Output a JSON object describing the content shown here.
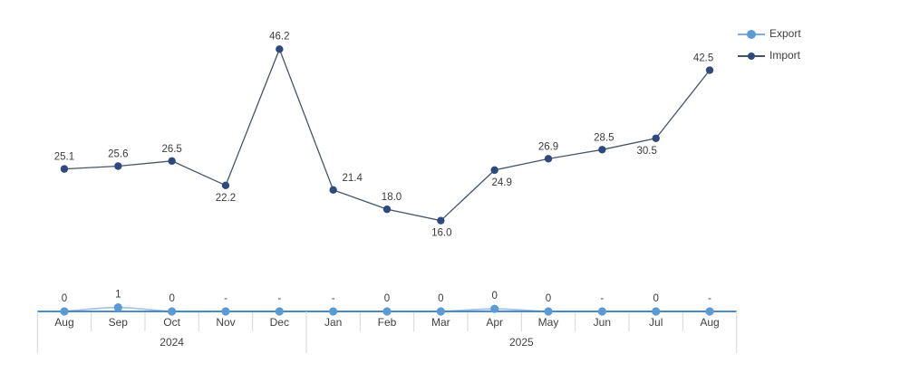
{
  "chart": {
    "background": "#ffffff",
    "legend": {
      "items": [
        {
          "label": "Export",
          "marker_color": "#5B9BD5",
          "line_color": "#7FACDC",
          "marker_size": 10
        },
        {
          "label": "Import",
          "marker_color": "#2E4A7C",
          "line_color": "#44546A",
          "marker_size": 8
        }
      ]
    }
  },
  "chart_data": {
    "type": "line",
    "categories": [
      "Aug",
      "Sep",
      "Oct",
      "Nov",
      "Dec",
      "Jan",
      "Feb",
      "Mar",
      "Apr",
      "May",
      "Jun",
      "Jul",
      "Aug"
    ],
    "year_groups": [
      {
        "label": "2024",
        "start": 0,
        "end": 4
      },
      {
        "label": "2025",
        "start": 5,
        "end": 12
      }
    ],
    "series": [
      {
        "name": "Export",
        "values": [
          0,
          0.7,
          0,
          0,
          0,
          0,
          0,
          0,
          0.45,
          0,
          0,
          0,
          0
        ],
        "labels": [
          "0",
          "1",
          "0",
          "-",
          "-",
          "-",
          "0",
          "0",
          "0",
          "0",
          "-",
          "0",
          "-"
        ],
        "label_offsets": [
          [
            0,
            -11
          ],
          [
            0,
            -11
          ],
          [
            0,
            -11
          ],
          [
            0,
            -11
          ],
          [
            0,
            -11
          ],
          [
            0,
            -11
          ],
          [
            0,
            -11
          ],
          [
            0,
            -11
          ],
          [
            0,
            -11
          ],
          [
            0,
            -11
          ],
          [
            0,
            -11
          ],
          [
            0,
            -11
          ],
          [
            0,
            -11
          ]
        ],
        "marker_color": "#5B9BD5",
        "line_color": "#A6C3E6",
        "marker_radius": 4.6,
        "line_width": 1.8,
        "smooth": true
      },
      {
        "name": "Import",
        "values": [
          25.1,
          25.6,
          26.5,
          22.2,
          46.2,
          21.4,
          18.0,
          16.0,
          24.9,
          26.9,
          28.5,
          30.5,
          42.5
        ],
        "labels": [
          "25.1",
          "25.6",
          "26.5",
          "22.2",
          "46.2",
          "21.4",
          "18.0",
          "16.0",
          "24.9",
          "26.9",
          "28.5",
          "30.5",
          "42.5"
        ],
        "label_offsets": [
          [
            0,
            -10
          ],
          [
            0,
            -10
          ],
          [
            0,
            -10
          ],
          [
            0,
            17
          ],
          [
            0,
            -11
          ],
          [
            21,
            -10
          ],
          [
            5,
            -10
          ],
          [
            1,
            17
          ],
          [
            8,
            17
          ],
          [
            0,
            -10
          ],
          [
            2,
            -10
          ],
          [
            -10,
            17
          ],
          [
            -7,
            -10
          ]
        ],
        "marker_color": "#2E4A7C",
        "line_color": "#44546A",
        "marker_radius": 4.2,
        "line_width": 1.3,
        "smooth": false
      }
    ],
    "axis": {
      "line_color": "#3A7CC0",
      "tick_color": "#D6D6D6",
      "label_color": "#404040",
      "value_label_color": "#3B3B3B"
    },
    "grid": false,
    "legend_position": "top-right",
    "ylim": [
      0,
      48
    ],
    "xlabel": "",
    "ylabel": "",
    "title": ""
  }
}
